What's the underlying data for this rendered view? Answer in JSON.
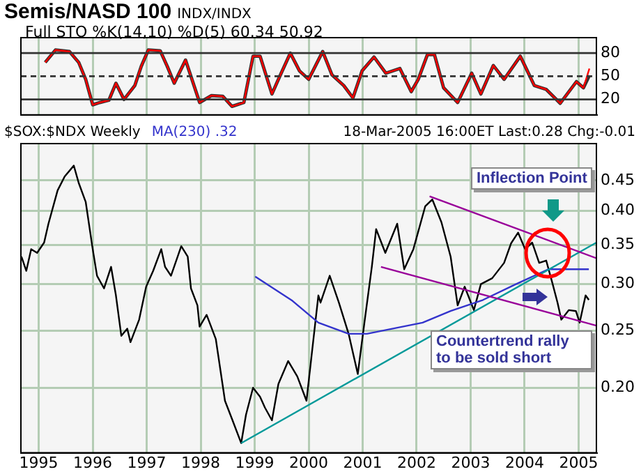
{
  "chart_data": [
    {
      "type": "line",
      "title": "Semis/NASD 100",
      "subtitle": "INDX/INDX",
      "annotations": [
        "Full STO %K(14,10) %D(5) 60.34 50.92"
      ],
      "x": [
        1995.12,
        1995.31,
        1995.57,
        1995.74,
        1995.87,
        1996.0,
        1996.13,
        1996.3,
        1996.43,
        1996.58,
        1996.78,
        1996.9,
        1997.03,
        1997.25,
        1997.38,
        1997.51,
        1997.72,
        1997.81,
        1997.98,
        1998.2,
        1998.41,
        1998.58,
        1998.8,
        1998.97,
        1999.1,
        1999.32,
        1999.44,
        1999.66,
        1999.83,
        2000.0,
        2000.26,
        2000.43,
        2000.65,
        2000.82,
        2000.99,
        2001.21,
        2001.43,
        2001.69,
        2001.9,
        2002.03,
        2002.2,
        2002.33,
        2002.5,
        2002.76,
        2003.02,
        2003.19,
        2003.42,
        2003.62,
        2003.92,
        2004.18,
        2004.4,
        2004.66,
        2004.96,
        2005.09,
        2005.2
      ],
      "series": [
        {
          "color": "#333333",
          "values": [
            68,
            84,
            82,
            68,
            46,
            13,
            16,
            19,
            41,
            20,
            38,
            63,
            84,
            83,
            63,
            41,
            71,
            52,
            16,
            25,
            24,
            11,
            16,
            76,
            76,
            27,
            46,
            80,
            57,
            46,
            82,
            52,
            38,
            22,
            57,
            75,
            54,
            60,
            30,
            46,
            78,
            78,
            35,
            16,
            54,
            27,
            64,
            46,
            76,
            38,
            33,
            15,
            43,
            35,
            51
          ]
        },
        {
          "color": "#ff0000",
          "values": [
            68,
            84,
            82,
            68,
            46,
            13,
            16,
            19,
            41,
            20,
            38,
            63,
            84,
            83,
            63,
            41,
            71,
            52,
            16,
            25,
            24,
            11,
            16,
            76,
            76,
            27,
            46,
            80,
            57,
            46,
            82,
            52,
            38,
            22,
            57,
            75,
            54,
            60,
            30,
            46,
            78,
            78,
            35,
            16,
            54,
            27,
            64,
            46,
            76,
            38,
            33,
            15,
            43,
            35,
            60
          ]
        }
      ],
      "xlim": [
        1994.67,
        2005.33
      ],
      "xticks": [
        1995,
        1996,
        1997,
        1998,
        1999,
        2000,
        2001,
        2002,
        2003,
        2004,
        2005
      ],
      "ylim": [
        0,
        100
      ],
      "yticks": [
        20,
        50,
        80
      ],
      "tick_labels": "y",
      "grid": "x",
      "ref_lines": [
        {
          "axis": "y",
          "value": 20,
          "color": "#333333"
        },
        {
          "axis": "y",
          "value": 50,
          "color": "#333333",
          "line_style": "dashed"
        },
        {
          "axis": "y",
          "value": 80,
          "color": "#333333"
        }
      ]
    },
    {
      "type": "line",
      "log": "y",
      "legend": "top left",
      "grid": true,
      "annotations": [
        "18-Mar-2005 16:00ET Last:0.28 Chg:-0.01",
        "Inflection Point",
        "Countertrend rally to be sold short"
      ],
      "xlim": [
        1994.67,
        2005.33
      ],
      "xticks": [
        1995,
        1996,
        1997,
        1998,
        1999,
        2000,
        2001,
        2002,
        2003,
        2004,
        2005
      ],
      "ylim": [
        0.155,
        0.52
      ],
      "yticks": [
        {
          "value": 0.2,
          "label": "0.20"
        },
        0.25,
        {
          "value": 0.3,
          "label": "0.30"
        },
        0.35,
        {
          "value": 0.4,
          "label": "0.40"
        },
        0.45
      ],
      "series": [
        {
          "name": "$SOX:$NDX Weekly",
          "color": "#000000",
          "x": [
            1994.68,
            1994.77,
            1994.86,
            1994.97,
            1995.1,
            1995.18,
            1995.35,
            1995.48,
            1995.65,
            1995.74,
            1995.87,
            1996.0,
            1996.08,
            1996.21,
            1996.34,
            1996.43,
            1996.53,
            1996.64,
            1996.7,
            1996.86,
            1996.99,
            1997.12,
            1997.27,
            1997.34,
            1997.45,
            1997.64,
            1997.76,
            1997.82,
            1997.94,
            1997.98,
            1998.11,
            1998.28,
            1998.45,
            1998.58,
            1998.75,
            1998.84,
            1998.97,
            1999.1,
            1999.19,
            1999.32,
            1999.44,
            1999.62,
            1999.79,
            1999.96,
            2000.05,
            2000.18,
            2000.22,
            2000.39,
            2000.56,
            2000.74,
            2000.91,
            2001.04,
            2001.17,
            2001.25,
            2001.42,
            2001.64,
            2001.77,
            2001.94,
            2002.16,
            2002.29,
            2002.46,
            2002.63,
            2002.76,
            2002.89,
            2003.06,
            2003.19,
            2003.4,
            2003.62,
            2003.75,
            2003.88,
            2004.01,
            2004.14,
            2004.27,
            2004.4,
            2004.52,
            2004.61,
            2004.68,
            2004.82,
            2004.95,
            2005.02,
            2005.13,
            2005.19
          ],
          "values": [
            0.334,
            0.316,
            0.344,
            0.339,
            0.353,
            0.38,
            0.433,
            0.457,
            0.477,
            0.446,
            0.414,
            0.344,
            0.31,
            0.295,
            0.321,
            0.287,
            0.245,
            0.252,
            0.239,
            0.261,
            0.297,
            0.316,
            0.344,
            0.321,
            0.31,
            0.348,
            0.334,
            0.295,
            0.276,
            0.254,
            0.266,
            0.242,
            0.19,
            0.177,
            0.161,
            0.18,
            0.2,
            0.193,
            0.185,
            0.176,
            0.203,
            0.222,
            0.209,
            0.19,
            0.225,
            0.287,
            0.279,
            0.31,
            0.279,
            0.247,
            0.211,
            0.261,
            0.321,
            0.372,
            0.339,
            0.38,
            0.318,
            0.344,
            0.407,
            0.418,
            0.382,
            0.334,
            0.276,
            0.297,
            0.271,
            0.3,
            0.307,
            0.326,
            0.352,
            0.367,
            0.344,
            0.353,
            0.326,
            0.329,
            0.3,
            0.279,
            0.261,
            0.271,
            0.27,
            0.258,
            0.287,
            0.282
          ]
        },
        {
          "name": "MA(230) .32",
          "color": "#3333cc",
          "x": [
            1999.01,
            1999.7,
            2000.18,
            2000.74,
            2001.08,
            2002.11,
            2002.63,
            2003.23,
            2003.84,
            2004.44,
            2004.61,
            2005.19
          ],
          "values": [
            0.309,
            0.281,
            0.258,
            0.247,
            0.247,
            0.258,
            0.27,
            0.282,
            0.3,
            0.318,
            0.318,
            0.318
          ]
        },
        {
          "color": "#009999",
          "x": [
            1998.75,
            2005.33
          ],
          "values": [
            0.161,
            0.353
          ]
        },
        {
          "color": "#990099",
          "x": [
            2002.24,
            2005.33
          ],
          "values": [
            0.423,
            0.332
          ]
        },
        {
          "color": "#990099",
          "x": [
            2001.34,
            2005.33
          ],
          "values": [
            0.321,
            0.255
          ]
        }
      ]
    }
  ]
}
